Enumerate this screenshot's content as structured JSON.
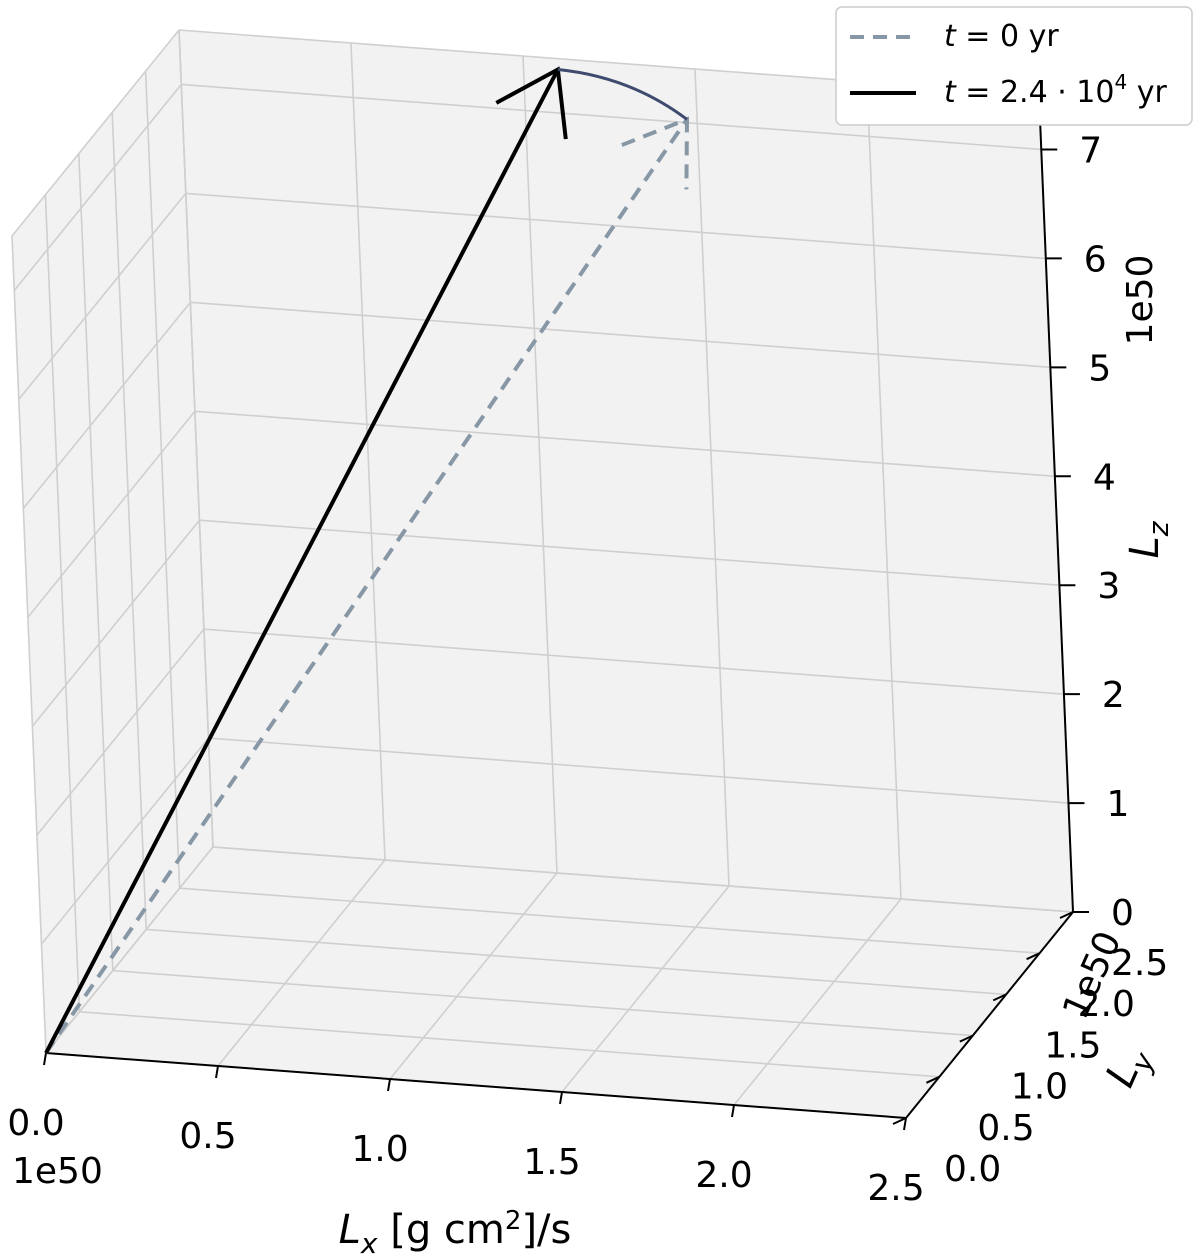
{
  "chart_data": {
    "type": "3d-vector",
    "x_axis": {
      "label": "L_x [g cm²]/s",
      "ticks": [
        "0.0",
        "0.5",
        "1.0",
        "1.5",
        "2.0",
        "2.5"
      ],
      "tick_values": [
        0.0,
        0.5,
        1.0,
        1.5,
        2.0,
        2.5
      ],
      "offset": "1e50",
      "range": [
        0.0,
        2.5
      ]
    },
    "y_axis": {
      "label": "L_y",
      "ticks": [
        "0.0",
        "0.5",
        "1.0",
        "1.5",
        "2.0",
        "2.5"
      ],
      "tick_values": [
        0.0,
        0.5,
        1.0,
        1.5,
        2.0,
        2.5
      ],
      "offset": "1e50",
      "range": [
        0.0,
        2.5
      ]
    },
    "z_axis": {
      "label": "L_z",
      "ticks": [
        "0",
        "1",
        "2",
        "3",
        "4",
        "5",
        "6",
        "7"
      ],
      "tick_values": [
        0,
        1,
        2,
        3,
        4,
        5,
        6,
        7
      ],
      "offset": "1e50",
      "range": [
        0,
        7.5
      ]
    },
    "grid": true,
    "legend_position": "top-right",
    "series": [
      {
        "name": "t = 0 yr",
        "style": "dashed",
        "color": "#8797a5",
        "vector": {
          "start": [
            0,
            0,
            0
          ],
          "end": [
            1.45,
            2.6,
            6.95
          ]
        }
      },
      {
        "name": "t = 2.4·10⁴ yr",
        "style": "solid",
        "color": "#000000",
        "vector": {
          "start": [
            0,
            0,
            0
          ],
          "end": [
            1.1,
            2.5,
            7.4
          ]
        }
      }
    ],
    "trajectory": {
      "color": "#3e4a6e",
      "points": [
        [
          1.1,
          2.5,
          7.4
        ],
        [
          1.28,
          2.56,
          7.22
        ],
        [
          1.45,
          2.6,
          6.95
        ]
      ]
    }
  }
}
